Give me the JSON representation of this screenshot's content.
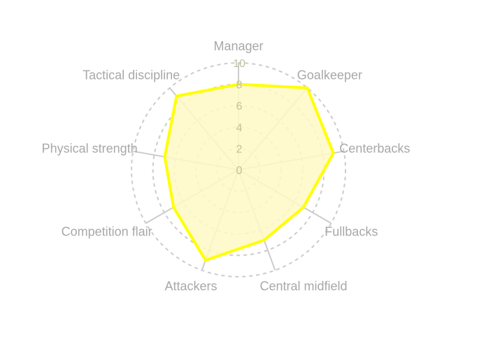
{
  "chart_data": {
    "type": "radar",
    "categories": [
      "Manager",
      "Goalkeeper",
      "Centerbacks",
      "Fullbacks",
      "Central midfield",
      "Attackers",
      "Competition flair",
      "Physical strength",
      "Tactical discipline"
    ],
    "values": [
      8,
      10,
      9,
      7,
      7,
      9,
      7,
      7,
      9
    ],
    "rlim": [
      0,
      10
    ],
    "ticks": [
      0,
      2,
      4,
      6,
      8,
      10
    ],
    "tick_labels": [
      "0",
      "2",
      "4",
      "6",
      "8",
      "10"
    ],
    "title": "",
    "grid": true,
    "legend": false
  },
  "colors": {
    "line": "#ffff00",
    "fill": "#fff9c4",
    "grid": "#cccccc",
    "label": "#a8a8a8",
    "tick": "#c2c0a0"
  }
}
